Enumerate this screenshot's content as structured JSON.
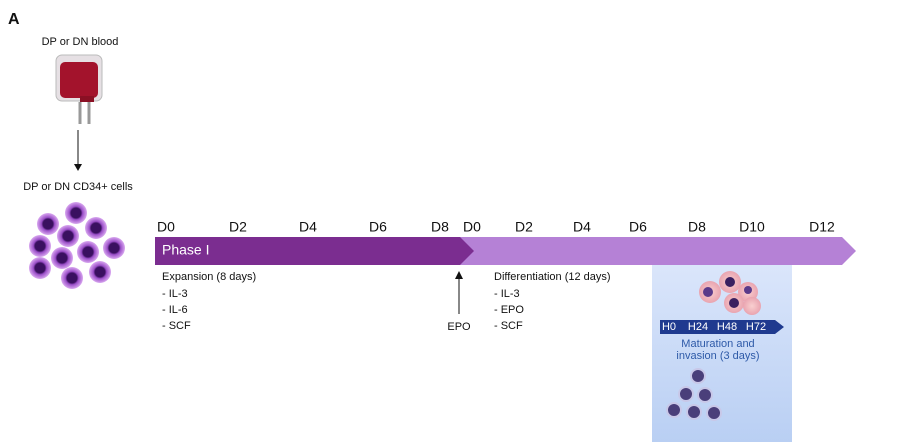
{
  "panel_label": "A",
  "source": {
    "label": "DP or DN blood"
  },
  "cells": {
    "label": "DP or DN CD34+ cells"
  },
  "phase1": {
    "title": "Phase I",
    "days": [
      "D0",
      "D2",
      "D4",
      "D6",
      "D8"
    ],
    "description": "Expansion (8 days)",
    "factors": [
      "-  IL-3",
      "-  IL-6",
      "-  SCF"
    ]
  },
  "epo_marker": "EPO",
  "phase2": {
    "days": [
      "D0",
      "D2",
      "D4",
      "D6",
      "D8",
      "D10",
      "D12"
    ],
    "description": "Differentiation (12 days)",
    "factors": [
      "-  IL-3",
      "-  EPO",
      "-  SCF"
    ]
  },
  "maturation": {
    "hours": [
      "H0",
      "H24",
      "H48",
      "H72"
    ],
    "label_lines": [
      "Maturation and",
      "invasion (3 days)"
    ]
  }
}
